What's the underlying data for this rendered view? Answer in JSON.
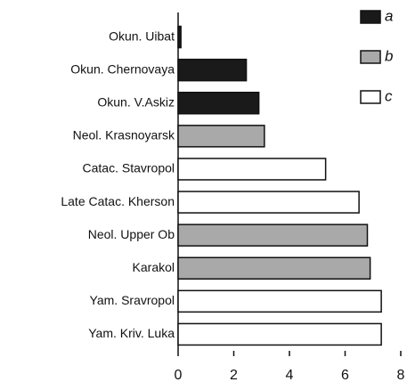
{
  "chart_data": {
    "type": "bar",
    "orientation": "horizontal",
    "categories": [
      "Okun. Uibat",
      "Okun. Chernovaya",
      "Okun. V.Askiz",
      "Neol. Krasnoyarsk",
      "Catac. Stavropol",
      "Late Catac. Kherson",
      "Neol. Upper Ob",
      "Karakol",
      "Yam. Sravropol",
      "Yam. Kriv. Luka"
    ],
    "series": [
      {
        "name": "a",
        "color": "#1a1a1a",
        "values": [
          0.1,
          2.45,
          2.9,
          null,
          null,
          null,
          null,
          null,
          null,
          null
        ]
      },
      {
        "name": "b",
        "color": "#a9a9a9",
        "values": [
          null,
          null,
          null,
          3.1,
          null,
          null,
          6.8,
          6.9,
          null,
          null
        ]
      },
      {
        "name": "c",
        "color": "#ffffff",
        "values": [
          null,
          null,
          null,
          null,
          5.3,
          6.5,
          null,
          null,
          7.3,
          7.3
        ]
      }
    ],
    "xlim": [
      0,
      8
    ],
    "xticks": [
      0,
      2,
      4,
      6,
      8
    ],
    "legend": "upper right"
  }
}
